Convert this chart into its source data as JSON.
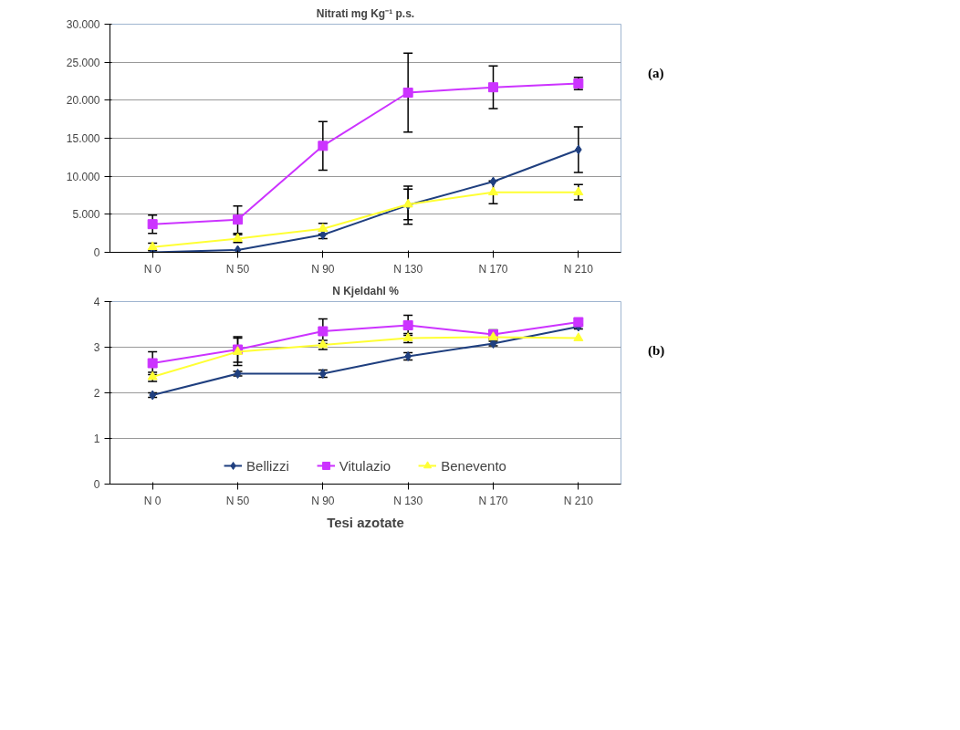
{
  "chart_data": [
    {
      "type": "line",
      "title": "Nitrati mg Kg⁻¹ p.s.",
      "categories": [
        "N 0",
        "N 50",
        "N 90",
        "N 130",
        "N 170",
        "N 210"
      ],
      "ylim": [
        0,
        30000
      ],
      "yticks": [
        0,
        {
          "value": 5000,
          "label": "5.000"
        },
        {
          "value": 10000,
          "label": "10.000"
        },
        {
          "value": 15000,
          "label": "15.000"
        },
        {
          "value": 20000,
          "label": "20.000"
        },
        {
          "value": 25000,
          "label": "25.000"
        },
        {
          "value": 30000,
          "label": "30.000"
        }
      ],
      "grid": "y",
      "legend": false,
      "annotations": [
        "(a)"
      ],
      "series": [
        {
          "color": "#1f3f7f",
          "marker": "diamond",
          "values": [
            0,
            300,
            2300,
            6200,
            9300,
            13500
          ],
          "errors": [
            null,
            null,
            500,
            2500,
            null,
            3000
          ]
        },
        {
          "color": "#cc33ff",
          "marker": "square",
          "values": [
            3700,
            4300,
            14000,
            21000,
            21700,
            22200
          ],
          "errors": [
            1200,
            1800,
            3200,
            5200,
            2800,
            800
          ]
        },
        {
          "color": "#ffff33",
          "marker": "triangle",
          "values": [
            700,
            1800,
            3100,
            6300,
            7900,
            7900
          ],
          "errors": [
            500,
            500,
            700,
            2000,
            1500,
            1000
          ]
        }
      ]
    },
    {
      "type": "line",
      "title": "N Kjeldahl %",
      "xlabel": "Tesi azotate",
      "categories": [
        "N 0",
        "N 50",
        "N 90",
        "N 130",
        "N 170",
        "N 210"
      ],
      "ylim": [
        0,
        4
      ],
      "yticks": [
        0,
        1,
        2,
        3,
        4
      ],
      "grid": "y",
      "legend": "bottom",
      "annotations": [
        "(b)"
      ],
      "series": [
        {
          "name": "Bellizzi",
          "color": "#1f3f7f",
          "marker": "diamond",
          "values": [
            1.95,
            2.42,
            2.42,
            2.8,
            3.08,
            3.45
          ],
          "errors": [
            0.05,
            0.05,
            0.08,
            0.08,
            0.05,
            0.05
          ]
        },
        {
          "name": "Vitulazio",
          "color": "#cc33ff",
          "marker": "square",
          "values": [
            2.65,
            2.95,
            3.35,
            3.48,
            3.28,
            3.55
          ],
          "errors": [
            0.25,
            0.28,
            0.27,
            0.22,
            0.1,
            null
          ]
        },
        {
          "name": "Benevento",
          "color": "#ffff33",
          "marker": "triangle",
          "values": [
            2.35,
            2.9,
            3.05,
            3.2,
            3.22,
            3.2
          ],
          "errors": [
            0.1,
            0.3,
            0.1,
            0.1,
            0.05,
            null
          ]
        }
      ]
    }
  ]
}
